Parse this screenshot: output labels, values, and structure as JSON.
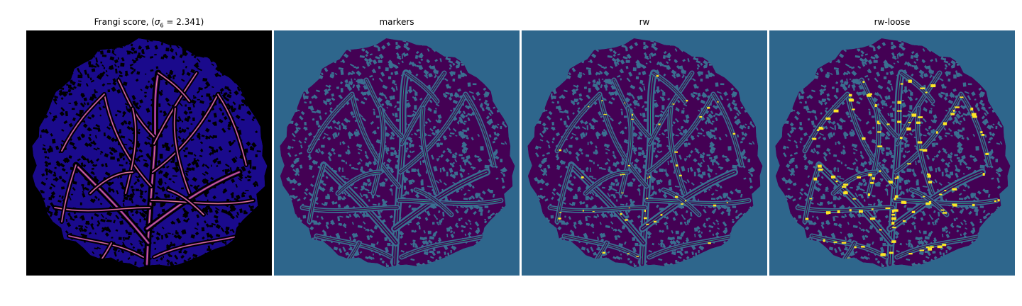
{
  "figure": {
    "panels": [
      {
        "id": "frangi",
        "title_prefix": "Frangi score, (",
        "title_sigma": "σ",
        "title_sub": "6",
        "title_suffix": " = 2.341)"
      },
      {
        "id": "markers",
        "title": "markers"
      },
      {
        "id": "rw",
        "title": "rw"
      },
      {
        "id": "rw-loose",
        "title": "rw-loose"
      }
    ],
    "colors": {
      "page_background": "#ffffff",
      "frangi_background": "#000000",
      "frangi_tissue": "#1a0a8c",
      "frangi_vessel_mid": "#8a1e9c",
      "frangi_vessel_high": "#f0a07a",
      "seg_background": "#2e668c",
      "seg_tissue": "#440154",
      "seg_edge": "#3a6f90",
      "seg_vessel": "#22a884",
      "seg_highlight": "#fde725"
    }
  }
}
